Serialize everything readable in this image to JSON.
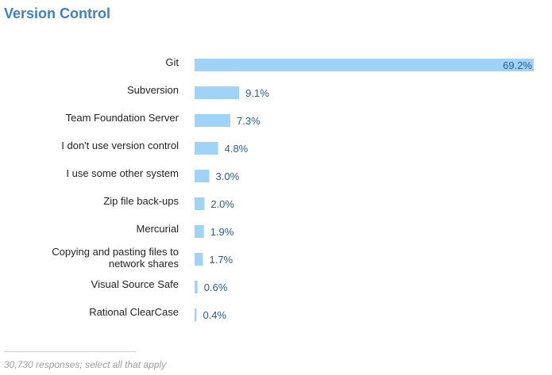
{
  "title": "Version Control",
  "footer": {
    "note": "30,730 responses; select all that apply"
  },
  "colors": {
    "bar": "#9fd3f7",
    "title": "#3f80bd",
    "value_label": "#2a5c8f",
    "category_label": "#222222"
  },
  "chart_data": {
    "type": "bar",
    "orientation": "horizontal",
    "title": "Version Control",
    "xlabel": "",
    "ylabel": "",
    "categories": [
      "Git",
      "Subversion",
      "Team Foundation Server",
      "I don't use version control",
      "I use some other system",
      "Zip file back-ups",
      "Mercurial",
      "Copying and pasting files to network shares",
      "Visual Source Safe",
      "Rational ClearCase"
    ],
    "values": [
      69.2,
      9.1,
      7.3,
      4.8,
      3.0,
      2.0,
      1.9,
      1.7,
      0.6,
      0.4
    ],
    "value_labels": [
      "69.2%",
      "9.1%",
      "7.3%",
      "4.8%",
      "3.0%",
      "2.0%",
      "1.9%",
      "1.7%",
      "0.6%",
      "0.4%"
    ],
    "grid": false
  }
}
